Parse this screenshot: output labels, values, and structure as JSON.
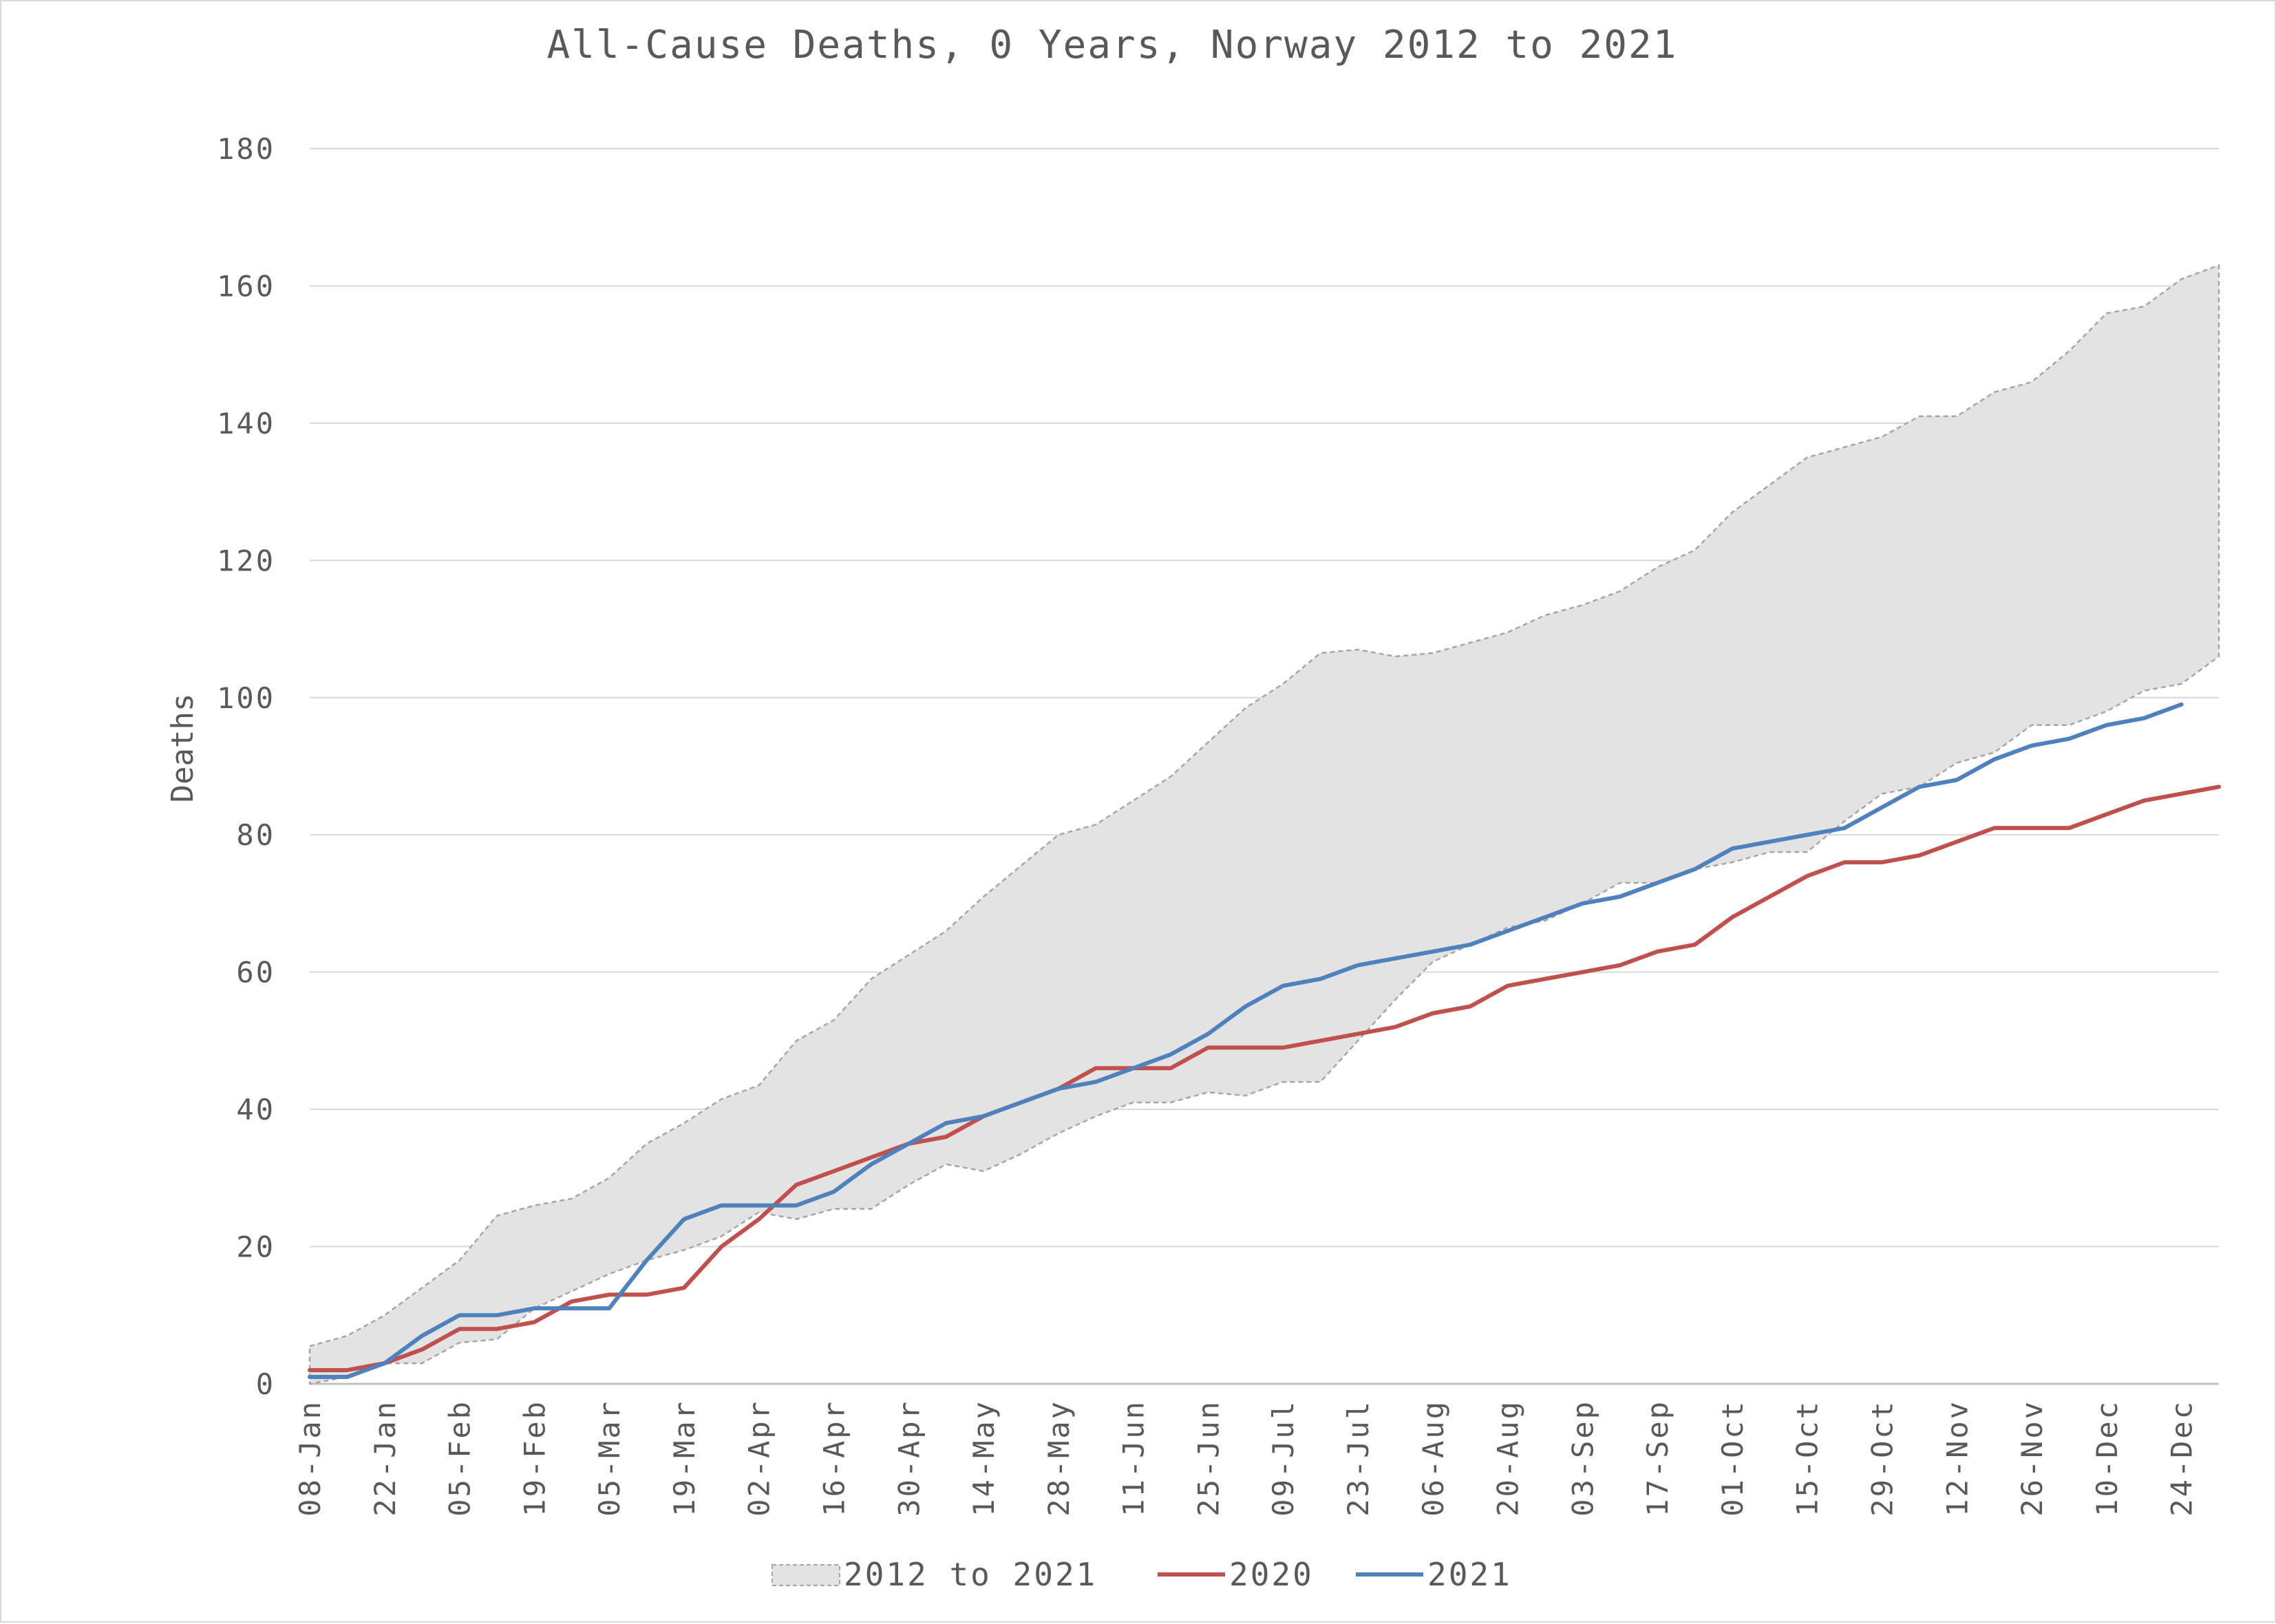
{
  "chart_data": {
    "type": "line",
    "title": "All-Cause Deaths, 0 Years, Norway 2012 to 2021",
    "xlabel": "",
    "ylabel": "Deaths",
    "ylim": [
      0,
      180
    ],
    "yticks": [
      0,
      20,
      40,
      60,
      80,
      100,
      120,
      140,
      160,
      180
    ],
    "grid": true,
    "legend_position": "bottom",
    "categories": [
      "08-Jan",
      "15-Jan",
      "22-Jan",
      "29-Jan",
      "05-Feb",
      "12-Feb",
      "19-Feb",
      "26-Feb",
      "05-Mar",
      "12-Mar",
      "19-Mar",
      "26-Mar",
      "02-Apr",
      "09-Apr",
      "16-Apr",
      "23-Apr",
      "30-Apr",
      "07-May",
      "14-May",
      "21-May",
      "28-May",
      "04-Jun",
      "11-Jun",
      "18-Jun",
      "25-Jun",
      "02-Jul",
      "09-Jul",
      "16-Jul",
      "23-Jul",
      "30-Jul",
      "06-Aug",
      "13-Aug",
      "20-Aug",
      "27-Aug",
      "03-Sep",
      "10-Sep",
      "17-Sep",
      "24-Sep",
      "01-Oct",
      "08-Oct",
      "15-Oct",
      "22-Oct",
      "29-Oct",
      "05-Nov",
      "12-Nov",
      "19-Nov",
      "26-Nov",
      "03-Dec",
      "10-Dec",
      "17-Dec",
      "24-Dec",
      "31-Dec"
    ],
    "tick_labels": [
      "08-Jan",
      "22-Jan",
      "05-Feb",
      "19-Feb",
      "05-Mar",
      "19-Mar",
      "02-Apr",
      "16-Apr",
      "30-Apr",
      "14-May",
      "28-May",
      "11-Jun",
      "25-Jun",
      "09-Jul",
      "23-Jul",
      "06-Aug",
      "20-Aug",
      "03-Sep",
      "17-Sep",
      "01-Oct",
      "15-Oct",
      "29-Oct",
      "12-Nov",
      "26-Nov",
      "10-Dec",
      "24-Dec"
    ],
    "band": {
      "name": "2012 to 2021",
      "color": "#e3e3e3",
      "stroke": "#a6a6a6",
      "upper": [
        5.5,
        7,
        10,
        14,
        18,
        24.5,
        26,
        27,
        30,
        35,
        38,
        41.5,
        43.5,
        50,
        53,
        59,
        62.5,
        66,
        71,
        75.5,
        80,
        81.5,
        85,
        88.5,
        93.5,
        98.5,
        102,
        106.5,
        107,
        106,
        106.5,
        108,
        109.5,
        112,
        113.5,
        115.5,
        119,
        121.5,
        127,
        131,
        135,
        136.5,
        138,
        141,
        141,
        144.5,
        146,
        150.5,
        156,
        157,
        161,
        163
      ],
      "lower": [
        0,
        1,
        3,
        3,
        6,
        6.5,
        11,
        13.5,
        16,
        18,
        19.5,
        21.5,
        25,
        24,
        25.5,
        25.5,
        29,
        32,
        31,
        33.5,
        36.5,
        39,
        41,
        41,
        42.5,
        42,
        44,
        44,
        50,
        56,
        61.5,
        64,
        66.5,
        67.5,
        70,
        73,
        73,
        75,
        76,
        77.5,
        77.5,
        82,
        86,
        87,
        90.5,
        92,
        96,
        96,
        98,
        101,
        102,
        106
      ]
    },
    "series": [
      {
        "name": "2020",
        "color": "#c0504d",
        "values": [
          2,
          2,
          3,
          5,
          8,
          8,
          9,
          12,
          13,
          13,
          14,
          20,
          24,
          29,
          31,
          33,
          35,
          36,
          39,
          41,
          43,
          46,
          46,
          46,
          49,
          49,
          49,
          50,
          51,
          52,
          54,
          55,
          58,
          59,
          60,
          61,
          63,
          64,
          68,
          71,
          74,
          76,
          76,
          77,
          79,
          81,
          81,
          81,
          83,
          85,
          86,
          87
        ]
      },
      {
        "name": "2021",
        "color": "#4f81bd",
        "values": [
          1,
          1,
          3,
          7,
          10,
          10,
          11,
          11,
          11,
          18,
          24,
          26,
          26,
          26,
          28,
          32,
          35,
          38,
          39,
          41,
          43,
          44,
          46,
          48,
          51,
          55,
          58,
          59,
          61,
          62,
          63,
          64,
          66,
          68,
          70,
          71,
          73,
          75,
          78,
          79,
          80,
          81,
          84,
          87,
          88,
          91,
          93,
          94,
          96,
          97,
          99,
          null
        ]
      }
    ]
  }
}
